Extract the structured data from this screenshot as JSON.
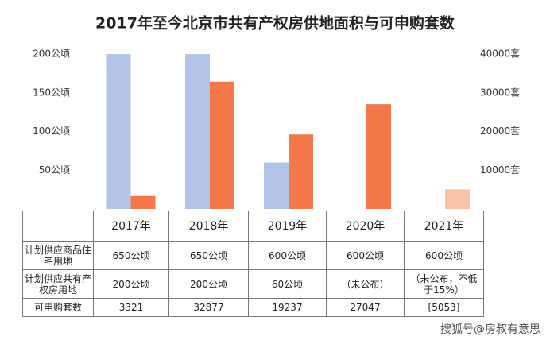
{
  "chart_data": {
    "type": "bar",
    "title": "2017年至今北京市共有产权房供地面积与可申购套数",
    "categories": [
      "2017年",
      "2018年",
      "2019年",
      "2020年",
      "2021年"
    ],
    "series": [
      {
        "name": "计划供应共有产权房用地",
        "color": "#b2c4e8",
        "values": [
          200,
          200,
          60,
          null,
          null
        ],
        "value_labels": [
          "200公顷",
          "200公顷",
          "60公顷",
          "（未公布）",
          "（未公布，不低于15%）"
        ]
      },
      {
        "name": "可申购套数",
        "color": "#f4784a",
        "axis": "y2",
        "colors": [
          "#f4784a",
          "#f4784a",
          "#f4784a",
          "#f4784a",
          "#f8c3a6"
        ],
        "values": [
          3321,
          32877,
          19237,
          27047,
          5053
        ],
        "value_labels": [
          "3321",
          "32877",
          "19237",
          "27047",
          "[5053]"
        ]
      }
    ],
    "ylim": [
      0,
      200
    ],
    "yticks": [
      {
        "value": 50,
        "label": "50公顷"
      },
      {
        "value": 100,
        "label": "100公顷"
      },
      {
        "value": 150,
        "label": "150公顷"
      },
      {
        "value": 200,
        "label": "200公顷"
      }
    ],
    "y2lim": [
      0,
      40000
    ],
    "y2ticks": [
      {
        "value": 10000,
        "label": "10000套"
      },
      {
        "value": 20000,
        "label": "20000套"
      },
      {
        "value": 30000,
        "label": "30000套"
      },
      {
        "value": 40000,
        "label": "40000套"
      }
    ]
  },
  "table": {
    "rows": [
      {
        "label": "计划供应商品住宅用地",
        "cells": [
          "650公顷",
          "650公顷",
          "600公顷",
          "600公顷",
          "600公顷"
        ]
      }
    ]
  },
  "footer": "搜狐号@房叔有意思"
}
